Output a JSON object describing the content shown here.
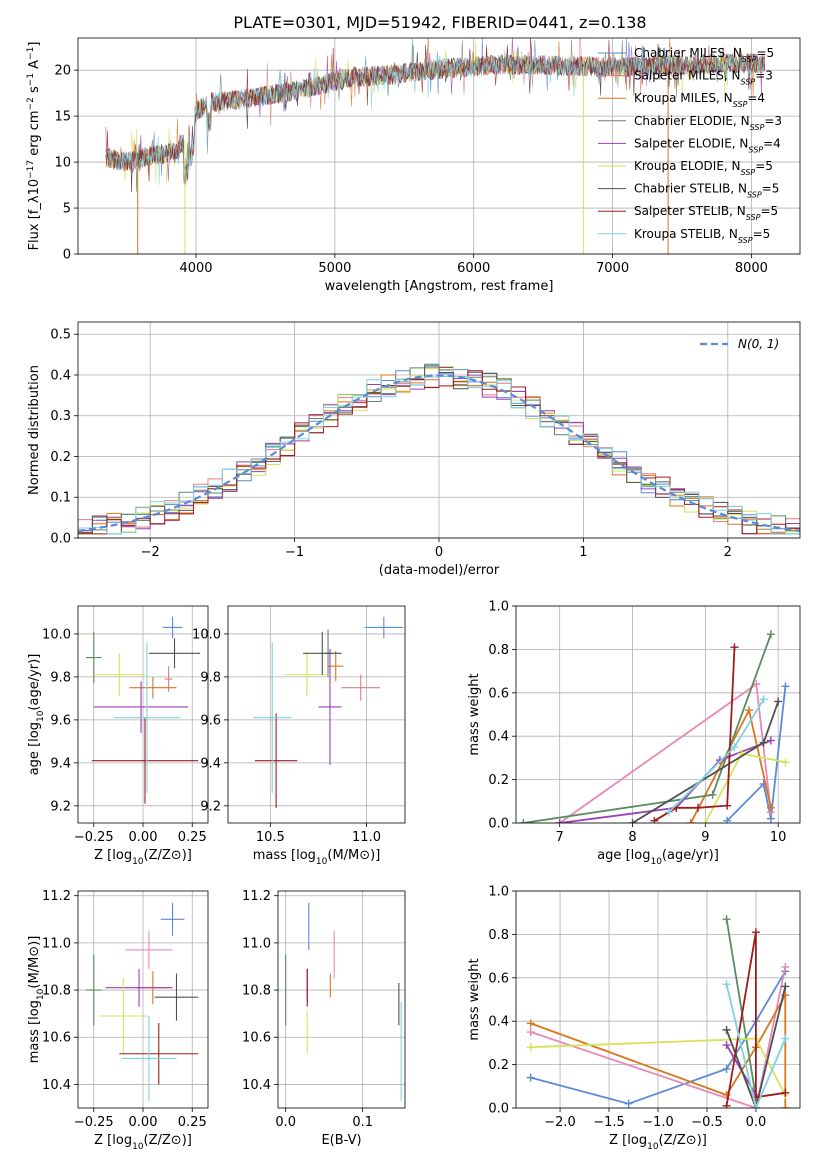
{
  "figure": {
    "title": "PLATE=0301, MJD=51942, FIBERID=0441, z=0.138"
  },
  "colors": {
    "Chabrier MILES": "#5b8bd6",
    "Salpeter MILES": "#e07b82",
    "Kroupa MILES": "#d9761f",
    "Chabrier ELODIE": "#5b8b5f",
    "Salpeter ELODIE": "#9b3fb5",
    "Kroupa ELODIE": "#d6e35a",
    "Chabrier STELIB": "#505050",
    "Salpeter STELIB": "#a01c1c",
    "Kroupa STELIB": "#7fd3e0",
    "normal": "#5b8bd6",
    "pink": "#e788b8"
  },
  "chart_data": [
    {
      "id": "spectrum",
      "type": "line",
      "xlabel": "wavelength [Angstrom, rest frame]",
      "ylabel": "Flux [f_λ10^-17 erg cm^-2 s^-1 A^-1]",
      "xlim": [
        3150,
        8350
      ],
      "ylim": [
        0,
        23.5
      ],
      "xticks": [
        4000,
        5000,
        6000,
        7000,
        8000
      ],
      "yticks": [
        0,
        5,
        10,
        15,
        20
      ],
      "legend_position": "right",
      "legend": [
        {
          "series": "Chabrier MILES",
          "label": "Chabrier MILES, N",
          "sub": "SSP",
          "tail": "=5"
        },
        {
          "series": "Salpeter MILES",
          "label": "Salpeter MILES, N",
          "sub": "SSP",
          "tail": "=3"
        },
        {
          "series": "Kroupa MILES",
          "label": "Kroupa MILES, N",
          "sub": "SSP",
          "tail": "=4"
        },
        {
          "series": "Chabrier ELODIE",
          "label": "Chabrier ELODIE, N",
          "sub": "SSP",
          "tail": "=3"
        },
        {
          "series": "Salpeter ELODIE",
          "label": "Salpeter ELODIE, N",
          "sub": "SSP",
          "tail": "=4"
        },
        {
          "series": "Kroupa ELODIE",
          "label": "Kroupa ELODIE, N",
          "sub": "SSP",
          "tail": "=5"
        },
        {
          "series": "Chabrier STELIB",
          "label": "Chabrier STELIB, N",
          "sub": "SSP",
          "tail": "=5"
        },
        {
          "series": "Salpeter STELIB",
          "label": "Salpeter STELIB, N",
          "sub": "SSP",
          "tail": "=5"
        },
        {
          "series": "Kroupa STELIB",
          "label": "Kroupa STELIB, N",
          "sub": "SSP",
          "tail": "=5"
        }
      ],
      "continuum": {
        "x": [
          3350,
          3500,
          3700,
          3850,
          3950,
          4000,
          4100,
          4300,
          4500,
          4800,
          5100,
          5400,
          5800,
          6200,
          6600,
          7000,
          7400,
          7800,
          8100
        ],
        "y": [
          10.5,
          10.0,
          10.8,
          11.0,
          13.0,
          15.5,
          16.5,
          16.8,
          17.2,
          18.0,
          19.2,
          19.5,
          20.2,
          20.6,
          20.5,
          20.3,
          20.5,
          20.7,
          20.8
        ]
      },
      "drops": [
        {
          "series": "Kroupa MILES",
          "x": 3580
        },
        {
          "series": "Kroupa ELODIE",
          "x": 3920
        },
        {
          "series": "Kroupa ELODIE",
          "x": 6790
        },
        {
          "series": "Kroupa MILES",
          "x": 7400
        }
      ]
    },
    {
      "id": "residuals",
      "type": "bar",
      "xlabel": "(data-model)/error",
      "ylabel": "Normed distribution",
      "xlim": [
        -2.5,
        2.5
      ],
      "ylim": [
        0,
        0.53
      ],
      "xticks": [
        -2,
        -1,
        0,
        1,
        2
      ],
      "yticks": [
        0.0,
        0.1,
        0.2,
        0.3,
        0.4,
        0.5
      ],
      "bin_width": 0.1,
      "normal_label": "N(0, 1)",
      "normal_sigma": 1
    },
    {
      "id": "age_vs_Z",
      "type": "scatter",
      "xlabel": "Z [log10(Z/Z⊙)]",
      "ylabel": "age [log10(age/yr)]",
      "xlim": [
        -0.33,
        0.33
      ],
      "ylim": [
        9.12,
        10.13
      ],
      "xticks": [
        -0.25,
        0.0,
        0.25
      ],
      "yticks": [
        9.2,
        9.4,
        9.6,
        9.8,
        10.0
      ],
      "points": [
        {
          "series": "Chabrier MILES",
          "x": 0.15,
          "y": 10.03,
          "xerr": 0.05,
          "yerr": 0.05
        },
        {
          "series": "Salpeter MILES",
          "x": 0.13,
          "y": 9.79,
          "xerr": 0.02,
          "yerr": 0.06
        },
        {
          "series": "Kroupa MILES",
          "x": 0.05,
          "y": 9.75,
          "xerr": 0.12,
          "yerr": 0.05
        },
        {
          "series": "Chabrier ELODIE",
          "x": -0.25,
          "y": 9.89,
          "xerr": 0.04,
          "yerr": 0.12
        },
        {
          "series": "Salpeter ELODIE",
          "x": -0.01,
          "y": 9.66,
          "xerr": 0.24,
          "yerr": 0.12
        },
        {
          "series": "Kroupa ELODIE",
          "x": -0.12,
          "y": 9.81,
          "xerr": 0.13,
          "yerr": 0.1
        },
        {
          "series": "Chabrier STELIB",
          "x": 0.16,
          "y": 9.91,
          "xerr": 0.13,
          "yerr": 0.07
        },
        {
          "series": "Salpeter STELIB",
          "x": 0.01,
          "y": 9.41,
          "xerr": 0.27,
          "yerr": 0.2
        },
        {
          "series": "Kroupa STELIB",
          "x": 0.02,
          "y": 9.61,
          "xerr": 0.17,
          "yerr": 0.35
        }
      ]
    },
    {
      "id": "age_vs_mass",
      "type": "scatter",
      "xlabel": "mass [log10(M/M⊙)]",
      "ylabel": "",
      "xlim": [
        10.28,
        11.2
      ],
      "ylim": [
        9.12,
        10.13
      ],
      "xticks": [
        10.5,
        11.0
      ],
      "yticks": [
        9.2,
        9.4,
        9.6,
        9.8,
        10.0
      ],
      "points": [
        {
          "series": "Chabrier MILES",
          "x": 11.09,
          "y": 10.03,
          "xerr": 0.1,
          "yerr": 0.05
        },
        {
          "series": "Salpeter MILES",
          "x": 10.97,
          "y": 9.75,
          "xerr": 0.1,
          "yerr": 0.06
        },
        {
          "series": "Kroupa MILES",
          "x": 10.84,
          "y": 9.85,
          "xerr": 0.04,
          "yerr": 0.07
        },
        {
          "series": "Chabrier ELODIE",
          "x": 10.8,
          "y": 9.91,
          "xerr": 0.02,
          "yerr": 0.11
        },
        {
          "series": "Salpeter ELODIE",
          "x": 10.81,
          "y": 9.66,
          "xerr": 0.06,
          "yerr": 0.27
        },
        {
          "series": "Kroupa ELODIE",
          "x": 10.69,
          "y": 9.81,
          "xerr": 0.12,
          "yerr": 0.1
        },
        {
          "series": "Chabrier STELIB",
          "x": 10.77,
          "y": 9.91,
          "xerr": 0.1,
          "yerr": 0.1
        },
        {
          "series": "Salpeter STELIB",
          "x": 10.53,
          "y": 9.41,
          "xerr": 0.11,
          "yerr": 0.22
        },
        {
          "series": "Kroupa STELIB",
          "x": 10.51,
          "y": 9.61,
          "xerr": 0.1,
          "yerr": 0.35
        }
      ]
    },
    {
      "id": "weight_vs_age",
      "type": "line",
      "xlabel": "age [log10(age/yr)]",
      "ylabel": "mass weight",
      "xlim": [
        6.4,
        10.3
      ],
      "ylim": [
        0,
        1
      ],
      "xticks": [
        7,
        8,
        9,
        10
      ],
      "yticks": [
        0.0,
        0.2,
        0.4,
        0.6,
        0.8,
        1.0
      ],
      "series": [
        {
          "name": "Chabrier MILES",
          "x": [
            9.3,
            9.8,
            9.9,
            10.1
          ],
          "y": [
            0.01,
            0.18,
            0.02,
            0.63
          ]
        },
        {
          "name": "pink",
          "x": [
            7.0,
            9.7,
            9.9
          ],
          "y": [
            0.0,
            0.64,
            0.05
          ]
        },
        {
          "name": "Kroupa MILES",
          "x": [
            8.8,
            9.6,
            9.9
          ],
          "y": [
            0.0,
            0.52,
            0.07
          ]
        },
        {
          "name": "Chabrier ELODIE",
          "x": [
            6.5,
            9.1,
            9.9
          ],
          "y": [
            0.0,
            0.13,
            0.87
          ]
        },
        {
          "name": "Salpeter ELODIE",
          "x": [
            7.0,
            8.6,
            9.2,
            9.9
          ],
          "y": [
            0.0,
            0.07,
            0.29,
            0.38
          ]
        },
        {
          "name": "Kroupa ELODIE",
          "x": [
            9.0,
            9.5,
            10.1
          ],
          "y": [
            0.0,
            0.32,
            0.28
          ]
        },
        {
          "name": "Chabrier STELIB",
          "x": [
            8.0,
            9.8,
            10.0
          ],
          "y": [
            0.0,
            0.37,
            0.56
          ]
        },
        {
          "name": "Salpeter STELIB",
          "x": [
            8.3,
            8.6,
            8.9,
            9.3,
            9.4
          ],
          "y": [
            0.01,
            0.07,
            0.07,
            0.08,
            0.81
          ]
        },
        {
          "name": "Kroupa STELIB",
          "x": [
            8.5,
            9.4,
            9.8
          ],
          "y": [
            0.05,
            0.35,
            0.57
          ]
        }
      ]
    },
    {
      "id": "mass_vs_Z",
      "type": "scatter",
      "xlabel": "Z [log10(Z/Z⊙)]",
      "ylabel": "mass [log10(M/M⊙)]",
      "xlim": [
        -0.33,
        0.33
      ],
      "ylim": [
        10.3,
        11.22
      ],
      "xticks": [
        -0.25,
        0.0,
        0.25
      ],
      "yticks": [
        10.4,
        10.6,
        10.8,
        11.0,
        11.2
      ],
      "points": [
        {
          "series": "Chabrier MILES",
          "x": 0.15,
          "y": 11.1,
          "xerr": 0.06,
          "yerr": 0.07
        },
        {
          "series": "pink",
          "x": 0.03,
          "y": 10.97,
          "xerr": 0.12,
          "yerr": 0.08
        },
        {
          "series": "Kroupa MILES",
          "x": 0.05,
          "y": 10.81,
          "xerr": 0.08,
          "yerr": 0.07
        },
        {
          "series": "Chabrier ELODIE",
          "x": -0.25,
          "y": 10.8,
          "xerr": 0.04,
          "yerr": 0.15
        },
        {
          "series": "Salpeter ELODIE",
          "x": -0.02,
          "y": 10.81,
          "xerr": 0.17,
          "yerr": 0.08
        },
        {
          "series": "Kroupa ELODIE",
          "x": -0.1,
          "y": 10.69,
          "xerr": 0.12,
          "yerr": 0.16
        },
        {
          "series": "Chabrier STELIB",
          "x": 0.17,
          "y": 10.77,
          "xerr": 0.11,
          "yerr": 0.1
        },
        {
          "series": "Salpeter STELIB",
          "x": 0.08,
          "y": 10.53,
          "xerr": 0.2,
          "yerr": 0.13
        },
        {
          "series": "Kroupa STELIB",
          "x": 0.03,
          "y": 10.51,
          "xerr": 0.14,
          "yerr": 0.18
        }
      ]
    },
    {
      "id": "mass_vs_EBV",
      "type": "scatter",
      "xlabel": "E(B-V)",
      "ylabel": "",
      "xlim": [
        -0.01,
        0.155
      ],
      "ylim": [
        10.3,
        11.22
      ],
      "xticks": [
        0.0,
        0.1
      ],
      "yticks": [
        10.4,
        10.6,
        10.8,
        11.0,
        11.2
      ],
      "points": [
        {
          "series": "Chabrier MILES",
          "x": 0.03,
          "y": 11.07,
          "xerr": 0.0,
          "yerr": 0.1
        },
        {
          "series": "pink",
          "x": 0.063,
          "y": 10.95,
          "xerr": 0.0,
          "yerr": 0.1
        },
        {
          "series": "Kroupa MILES",
          "x": 0.058,
          "y": 10.82,
          "xerr": 0.0,
          "yerr": 0.05
        },
        {
          "series": "Chabrier ELODIE",
          "x": 0.0,
          "y": 10.8,
          "xerr": 0.0,
          "yerr": 0.15
        },
        {
          "series": "Salpeter ELODIE",
          "x": 0.028,
          "y": 10.82,
          "xerr": 0.0,
          "yerr": 0.07
        },
        {
          "series": "Kroupa ELODIE",
          "x": 0.028,
          "y": 10.62,
          "xerr": 0.0,
          "yerr": 0.09
        },
        {
          "series": "Chabrier STELIB",
          "x": 0.147,
          "y": 10.74,
          "xerr": 0.0,
          "yerr": 0.09
        },
        {
          "series": "Salpeter STELIB",
          "x": 0.028,
          "y": 10.81,
          "xerr": 0.0,
          "yerr": 0.08
        },
        {
          "series": "Kroupa STELIB",
          "x": 0.15,
          "y": 10.54,
          "xerr": 0.0,
          "yerr": 0.21
        }
      ]
    },
    {
      "id": "weight_vs_Z",
      "type": "line",
      "xlabel": "Z [log10(Z/Z⊙)]",
      "ylabel": "mass weight",
      "xlim": [
        -2.45,
        0.45
      ],
      "ylim": [
        0,
        1
      ],
      "xticks": [
        -2.0,
        -1.5,
        -1.0,
        -0.5,
        0.0
      ],
      "yticks": [
        0.0,
        0.2,
        0.4,
        0.6,
        0.8,
        1.0
      ],
      "series": [
        {
          "name": "Chabrier MILES",
          "x": [
            -2.3,
            -1.3,
            -0.3,
            0.0,
            0.3
          ],
          "y": [
            0.14,
            0.02,
            0.18,
            0.4,
            0.63
          ]
        },
        {
          "name": "pink",
          "x": [
            -2.3,
            0.0,
            0.3
          ],
          "y": [
            0.35,
            0.0,
            0.65
          ]
        },
        {
          "name": "Kroupa MILES",
          "x": [
            -2.3,
            -0.3,
            0.0,
            0.3,
            0.3
          ],
          "y": [
            0.39,
            0.06,
            0.28,
            0.52,
            0.0
          ]
        },
        {
          "name": "Chabrier ELODIE",
          "x": [
            -0.3,
            0.0
          ],
          "y": [
            0.87,
            0.05
          ]
        },
        {
          "name": "Salpeter ELODIE",
          "x": [
            -0.3,
            0.0
          ],
          "y": [
            0.29,
            0.06
          ]
        },
        {
          "name": "Kroupa ELODIE",
          "x": [
            -2.3,
            0.0,
            0.3
          ],
          "y": [
            0.28,
            0.32,
            0.06
          ]
        },
        {
          "name": "Chabrier STELIB",
          "x": [
            -0.3,
            0.0,
            0.3
          ],
          "y": [
            0.36,
            0.0,
            0.56
          ]
        },
        {
          "name": "Salpeter STELIB",
          "x": [
            -0.3,
            0.0,
            0.0,
            0.3
          ],
          "y": [
            0.01,
            0.81,
            0.05,
            0.07
          ]
        },
        {
          "name": "Kroupa STELIB",
          "x": [
            -0.3,
            0.0,
            0.3
          ],
          "y": [
            0.57,
            0.0,
            0.32
          ]
        }
      ]
    }
  ]
}
